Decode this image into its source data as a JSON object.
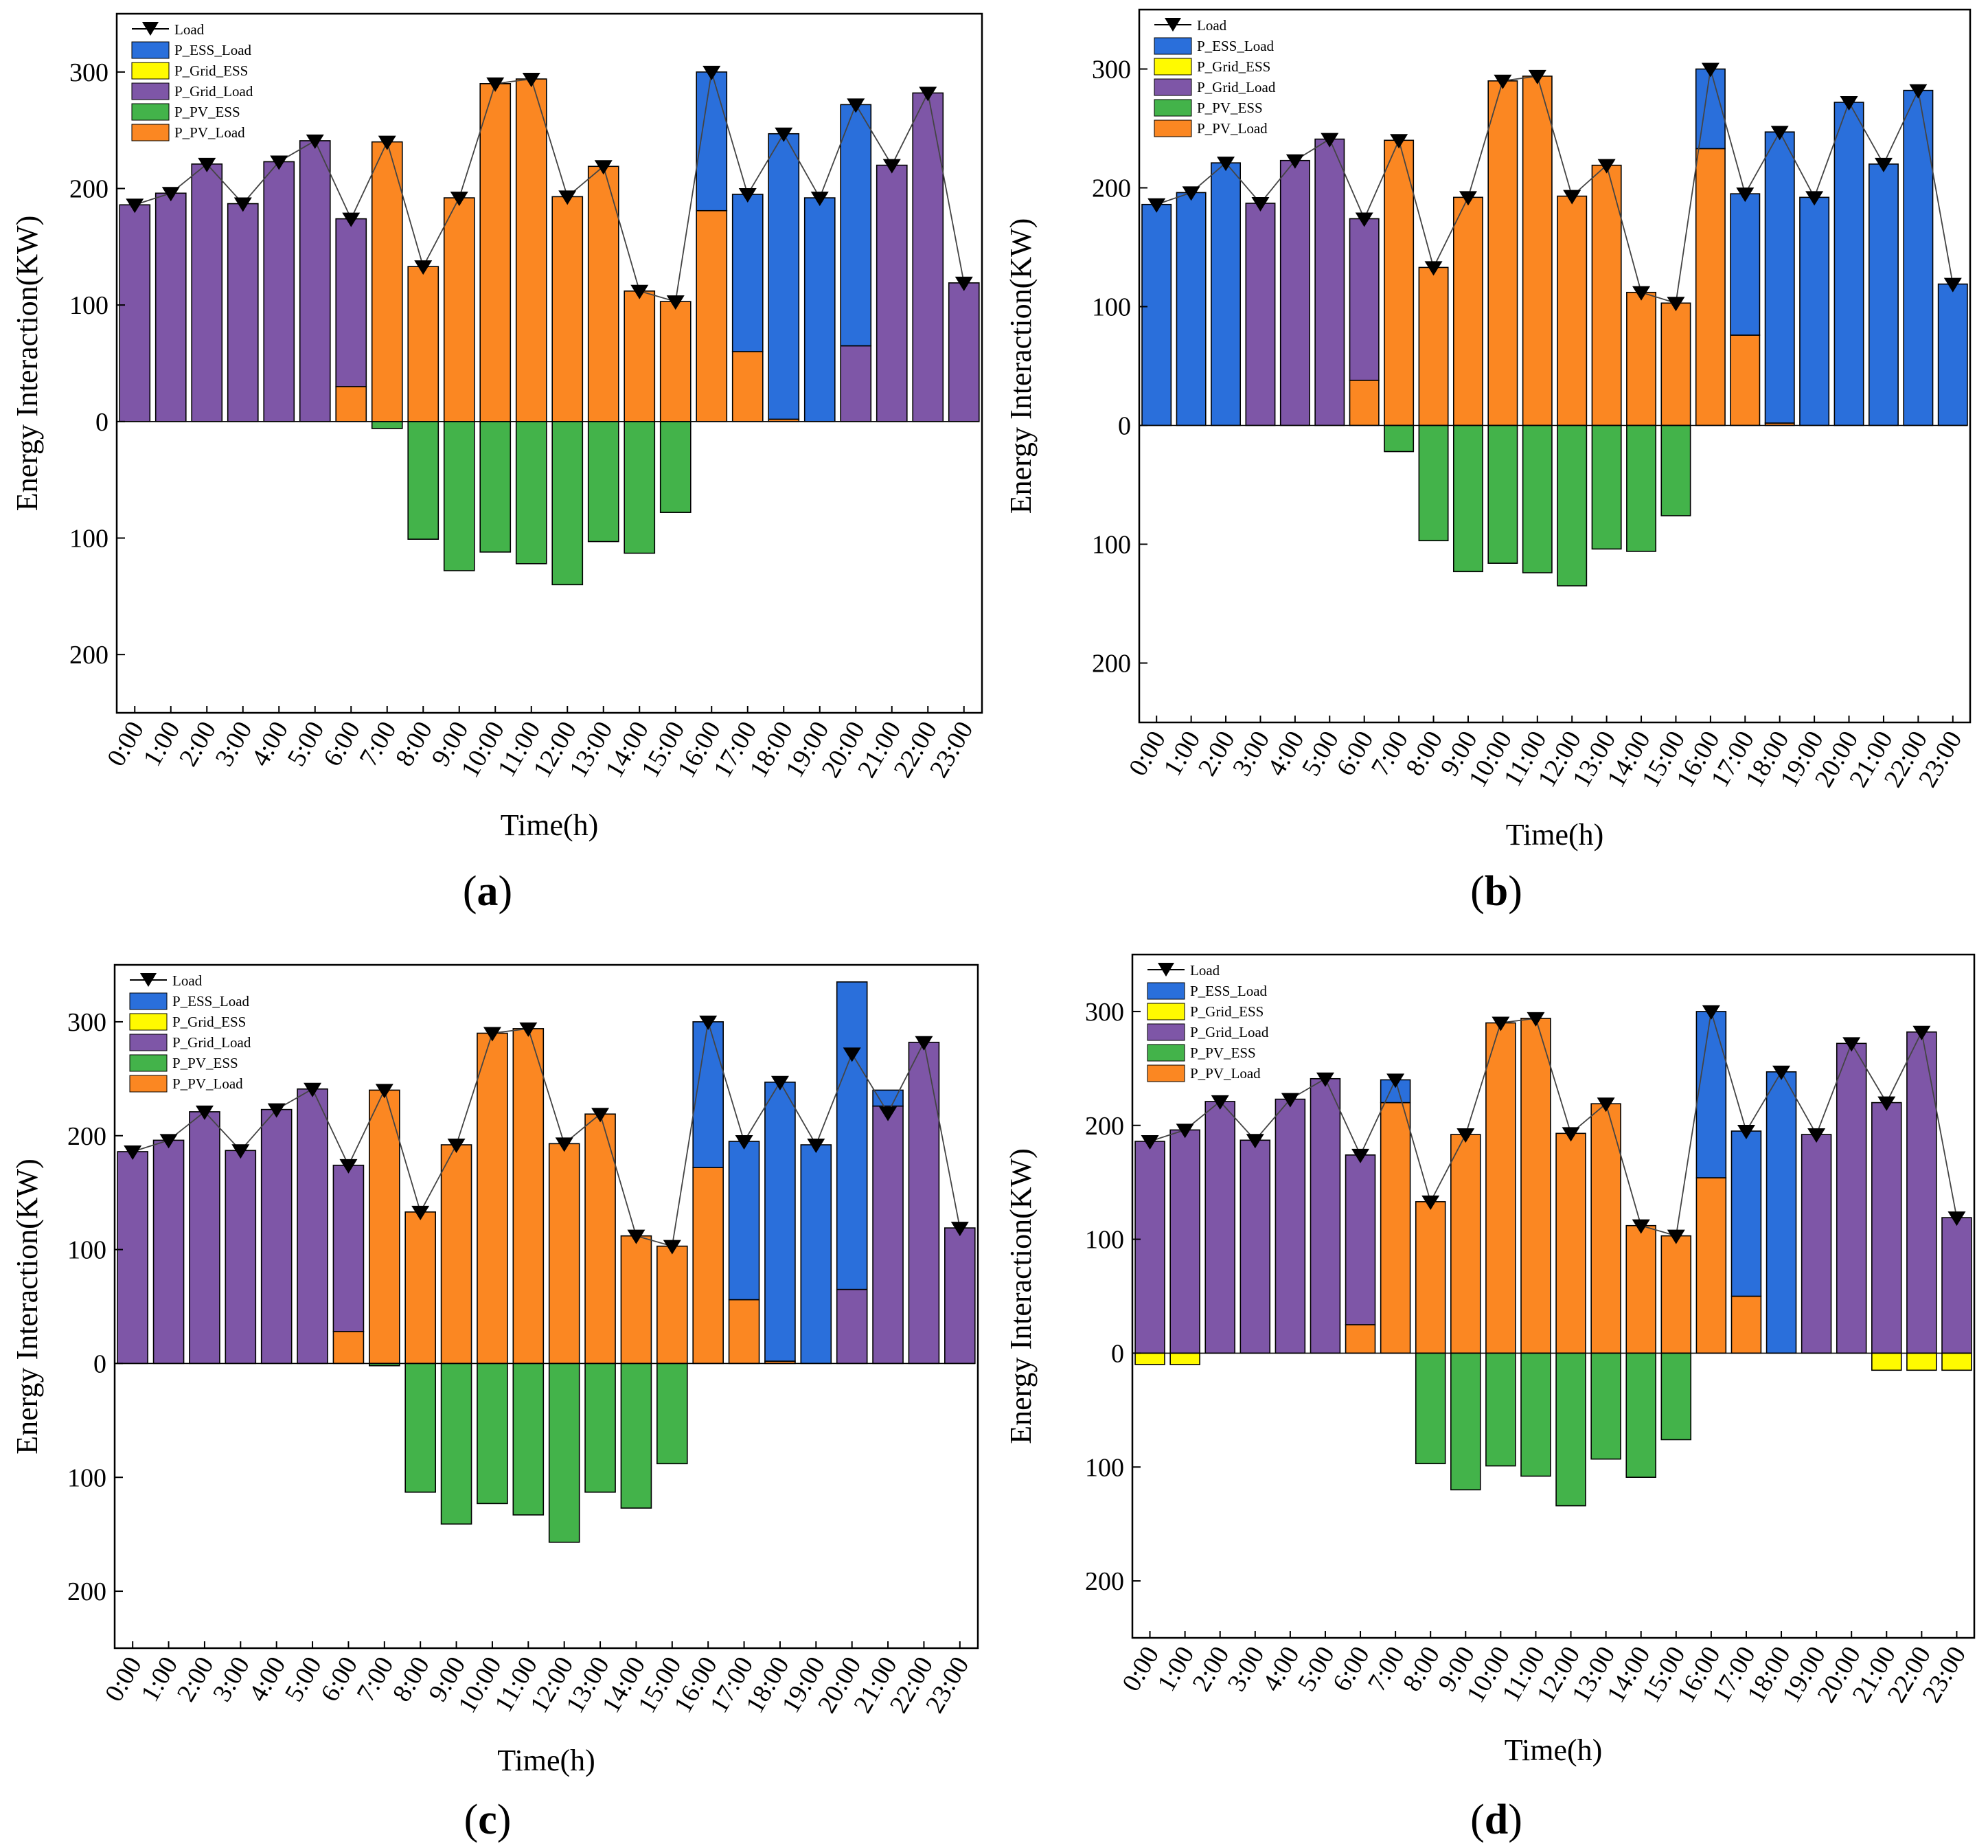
{
  "colors": {
    "P_ESS_Load": "#2a6fdb",
    "P_Grid_ESS": "#fffa00",
    "P_Grid_Load": "#7e56a7",
    "P_PV_ESS": "#43b34a",
    "P_PV_Load": "#fb8722",
    "Load": "#000000"
  },
  "chart_data": [
    {
      "type": "bar",
      "panel_label": "a",
      "xlabel": "Time(h)",
      "ylabel": "Energy Interaction(KW)",
      "ylim": [
        -250,
        350
      ],
      "yticks": [
        {
          "v": 300,
          "t": "300"
        },
        {
          "v": 200,
          "t": "200"
        },
        {
          "v": 100,
          "t": "100"
        },
        {
          "v": 0,
          "t": "0"
        },
        {
          "v": -100,
          "t": "100"
        },
        {
          "v": -200,
          "t": "200"
        }
      ],
      "categories": [
        "0:00",
        "1:00",
        "2:00",
        "3:00",
        "4:00",
        "5:00",
        "6:00",
        "7:00",
        "8:00",
        "9:00",
        "10:00",
        "11:00",
        "12:00",
        "13:00",
        "14:00",
        "15:00",
        "16:00",
        "17:00",
        "18:00",
        "19:00",
        "20:00",
        "21:00",
        "22:00",
        "23:00"
      ],
      "legend": [
        "Load",
        "P_ESS_Load",
        "P_Grid_ESS",
        "P_Grid_Load",
        "P_PV_ESS",
        "P_PV_Load"
      ],
      "series": [
        {
          "name": "P_PV_Load",
          "values": [
            0,
            0,
            0,
            0,
            0,
            0,
            30,
            240,
            133,
            192,
            290,
            294,
            193,
            219,
            112,
            103,
            181,
            60,
            2,
            0,
            0,
            0,
            0,
            0
          ]
        },
        {
          "name": "P_Grid_Load",
          "values": [
            186,
            196,
            221,
            187,
            223,
            241,
            144,
            0,
            0,
            0,
            0,
            0,
            0,
            0,
            0,
            0,
            0,
            0,
            0,
            0,
            65,
            220,
            282,
            119
          ]
        },
        {
          "name": "P_ESS_Load",
          "values": [
            0,
            0,
            0,
            0,
            0,
            0,
            0,
            0,
            0,
            0,
            0,
            0,
            0,
            0,
            0,
            0,
            119,
            135,
            245,
            192,
            207,
            0,
            0,
            0
          ]
        },
        {
          "name": "P_PV_ESS",
          "values": [
            0,
            0,
            0,
            0,
            0,
            0,
            0,
            -6,
            -101,
            -128,
            -112,
            -122,
            -140,
            -103,
            -113,
            -78,
            0,
            0,
            0,
            0,
            0,
            0,
            0,
            0
          ]
        },
        {
          "name": "P_Grid_ESS",
          "values": [
            0,
            0,
            0,
            0,
            0,
            0,
            0,
            0,
            0,
            0,
            0,
            0,
            0,
            0,
            0,
            0,
            0,
            0,
            0,
            0,
            0,
            0,
            0,
            0
          ]
        },
        {
          "name": "Load",
          "values": [
            186,
            196,
            221,
            187,
            223,
            241,
            174,
            240,
            133,
            192,
            290,
            294,
            193,
            219,
            112,
            103,
            300,
            195,
            247,
            192,
            272,
            220,
            282,
            119
          ]
        }
      ]
    },
    {
      "type": "bar",
      "panel_label": "b",
      "xlabel": "Time(h)",
      "ylabel": "Energy Interaction(KW)",
      "ylim": [
        -250,
        350
      ],
      "yticks": [
        {
          "v": 300,
          "t": "300"
        },
        {
          "v": 200,
          "t": "200"
        },
        {
          "v": 100,
          "t": "100"
        },
        {
          "v": 0,
          "t": "0"
        },
        {
          "v": -100,
          "t": "100"
        },
        {
          "v": -200,
          "t": "200"
        }
      ],
      "categories": [
        "0:00",
        "1:00",
        "2:00",
        "3:00",
        "4:00",
        "5:00",
        "6:00",
        "7:00",
        "8:00",
        "9:00",
        "10:00",
        "11:00",
        "12:00",
        "13:00",
        "14:00",
        "15:00",
        "16:00",
        "17:00",
        "18:00",
        "19:00",
        "20:00",
        "21:00",
        "22:00",
        "23:00"
      ],
      "legend": [
        "Load",
        "P_ESS_Load",
        "P_Grid_ESS",
        "P_Grid_Load",
        "P_PV_ESS",
        "P_PV_Load"
      ],
      "series": [
        {
          "name": "P_PV_Load",
          "values": [
            0,
            0,
            0,
            0,
            0,
            0,
            38,
            240,
            133,
            192,
            290,
            294,
            193,
            219,
            112,
            103,
            233,
            76,
            2,
            0,
            0,
            0,
            0,
            0
          ]
        },
        {
          "name": "P_Grid_Load",
          "values": [
            0,
            0,
            0,
            187,
            223,
            241,
            136,
            0,
            0,
            0,
            0,
            0,
            0,
            0,
            0,
            0,
            0,
            0,
            0,
            0,
            0,
            0,
            0,
            0
          ]
        },
        {
          "name": "P_ESS_Load",
          "values": [
            186,
            196,
            221,
            0,
            0,
            0,
            0,
            0,
            0,
            0,
            0,
            0,
            0,
            0,
            0,
            0,
            67,
            119,
            245,
            192,
            272,
            220,
            282,
            119
          ]
        },
        {
          "name": "P_PV_ESS",
          "values": [
            0,
            0,
            0,
            0,
            0,
            0,
            0,
            -22,
            -97,
            -123,
            -116,
            -124,
            -135,
            -104,
            -106,
            -76,
            0,
            0,
            0,
            0,
            0,
            0,
            0,
            0
          ]
        },
        {
          "name": "P_Grid_ESS",
          "values": [
            0,
            0,
            0,
            0,
            0,
            0,
            0,
            0,
            0,
            0,
            0,
            0,
            0,
            0,
            0,
            0,
            0,
            0,
            0,
            0,
            0,
            0,
            0,
            0
          ]
        },
        {
          "name": "Load",
          "values": [
            186,
            196,
            221,
            187,
            223,
            241,
            174,
            240,
            133,
            192,
            290,
            294,
            193,
            219,
            112,
            103,
            300,
            195,
            247,
            192,
            272,
            220,
            282,
            119
          ]
        }
      ]
    },
    {
      "type": "bar",
      "panel_label": "c",
      "xlabel": "Time(h)",
      "ylabel": "Energy Interaction(KW)",
      "ylim": [
        -250,
        350
      ],
      "yticks": [
        {
          "v": 300,
          "t": "300"
        },
        {
          "v": 200,
          "t": "200"
        },
        {
          "v": 100,
          "t": "100"
        },
        {
          "v": 0,
          "t": "0"
        },
        {
          "v": -100,
          "t": "100"
        },
        {
          "v": -200,
          "t": "200"
        }
      ],
      "categories": [
        "0:00",
        "1:00",
        "2:00",
        "3:00",
        "4:00",
        "5:00",
        "6:00",
        "7:00",
        "8:00",
        "9:00",
        "10:00",
        "11:00",
        "12:00",
        "13:00",
        "14:00",
        "15:00",
        "16:00",
        "17:00",
        "18:00",
        "19:00",
        "20:00",
        "21:00",
        "22:00",
        "23:00"
      ],
      "legend": [
        "Load",
        "P_ESS_Load",
        "P_Grid_ESS",
        "P_Grid_Load",
        "P_PV_ESS",
        "P_PV_Load"
      ],
      "series": [
        {
          "name": "P_PV_Load",
          "values": [
            0,
            0,
            0,
            0,
            0,
            0,
            28,
            240,
            133,
            192,
            290,
            294,
            193,
            219,
            112,
            103,
            172,
            56,
            2,
            0,
            0,
            0,
            0,
            0
          ]
        },
        {
          "name": "P_Grid_Load",
          "values": [
            186,
            196,
            221,
            187,
            223,
            241,
            146,
            0,
            0,
            0,
            0,
            0,
            0,
            0,
            0,
            0,
            0,
            0,
            0,
            0,
            65,
            226,
            282,
            119
          ]
        },
        {
          "name": "P_ESS_Load",
          "values": [
            0,
            0,
            0,
            0,
            0,
            0,
            0,
            0,
            0,
            0,
            0,
            0,
            0,
            0,
            0,
            0,
            128,
            139,
            245,
            192,
            270,
            14,
            0,
            0
          ]
        },
        {
          "name": "P_PV_ESS",
          "values": [
            0,
            0,
            0,
            0,
            0,
            0,
            0,
            -2,
            -113,
            -141,
            -123,
            -133,
            -157,
            -113,
            -127,
            -88,
            0,
            0,
            0,
            0,
            0,
            0,
            0,
            0
          ]
        },
        {
          "name": "P_Grid_ESS",
          "values": [
            0,
            0,
            0,
            0,
            0,
            0,
            0,
            0,
            0,
            0,
            0,
            0,
            0,
            0,
            0,
            0,
            0,
            0,
            0,
            0,
            0,
            0,
            0,
            0
          ]
        },
        {
          "name": "Load",
          "values": [
            186,
            196,
            221,
            187,
            223,
            241,
            174,
            240,
            133,
            192,
            290,
            294,
            193,
            219,
            112,
            103,
            300,
            195,
            247,
            192,
            272,
            220,
            282,
            119
          ]
        }
      ]
    },
    {
      "type": "bar",
      "panel_label": "d",
      "xlabel": "Time(h)",
      "ylabel": "Energy Interaction(KW)",
      "ylim": [
        -250,
        350
      ],
      "yticks": [
        {
          "v": 300,
          "t": "300"
        },
        {
          "v": 200,
          "t": "200"
        },
        {
          "v": 100,
          "t": "100"
        },
        {
          "v": 0,
          "t": "0"
        },
        {
          "v": -100,
          "t": "100"
        },
        {
          "v": -200,
          "t": "200"
        }
      ],
      "categories": [
        "0:00",
        "1:00",
        "2:00",
        "3:00",
        "4:00",
        "5:00",
        "6:00",
        "7:00",
        "8:00",
        "9:00",
        "10:00",
        "11:00",
        "12:00",
        "13:00",
        "14:00",
        "15:00",
        "16:00",
        "17:00",
        "18:00",
        "19:00",
        "20:00",
        "21:00",
        "22:00",
        "23:00"
      ],
      "legend": [
        "Load",
        "P_ESS_Load",
        "P_Grid_ESS",
        "P_Grid_Load",
        "P_PV_ESS",
        "P_PV_Load"
      ],
      "series": [
        {
          "name": "P_PV_Load",
          "values": [
            0,
            0,
            0,
            0,
            0,
            0,
            25,
            220,
            133,
            192,
            290,
            294,
            193,
            219,
            112,
            103,
            154,
            50,
            0,
            0,
            0,
            0,
            0,
            0
          ]
        },
        {
          "name": "P_Grid_Load",
          "values": [
            186,
            196,
            221,
            187,
            223,
            241,
            149,
            0,
            0,
            0,
            0,
            0,
            0,
            0,
            0,
            0,
            0,
            0,
            0,
            192,
            272,
            220,
            282,
            119
          ]
        },
        {
          "name": "P_ESS_Load",
          "values": [
            0,
            0,
            0,
            0,
            0,
            0,
            0,
            20,
            0,
            0,
            0,
            0,
            0,
            0,
            0,
            0,
            146,
            145,
            247,
            0,
            0,
            0,
            0,
            0
          ]
        },
        {
          "name": "P_PV_ESS",
          "values": [
            0,
            0,
            0,
            0,
            0,
            0,
            0,
            0,
            -97,
            -120,
            -99,
            -108,
            -134,
            -93,
            -109,
            -76,
            0,
            0,
            0,
            0,
            0,
            0,
            0,
            0
          ]
        },
        {
          "name": "P_Grid_ESS",
          "values": [
            -10,
            -10,
            0,
            0,
            0,
            0,
            0,
            0,
            0,
            0,
            0,
            0,
            0,
            0,
            0,
            0,
            0,
            0,
            0,
            0,
            0,
            -15,
            -15,
            -15
          ]
        },
        {
          "name": "Load",
          "values": [
            186,
            196,
            221,
            187,
            223,
            241,
            174,
            240,
            133,
            192,
            290,
            294,
            193,
            219,
            112,
            103,
            300,
            195,
            247,
            192,
            272,
            220,
            282,
            119
          ]
        }
      ]
    }
  ]
}
